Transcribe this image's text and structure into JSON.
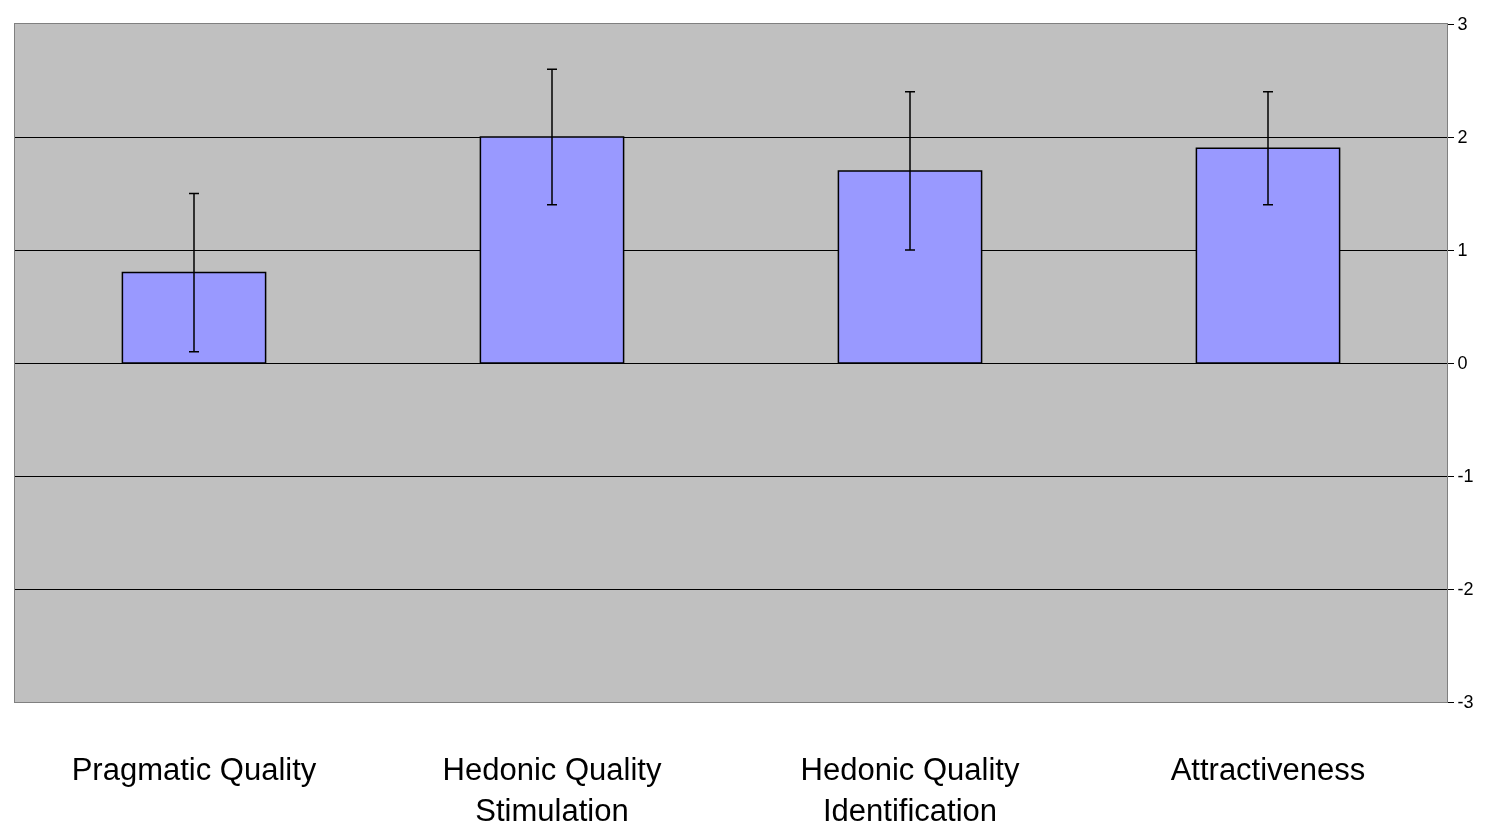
{
  "chart_data": {
    "type": "bar",
    "categories": [
      "Pragmatic Quality",
      "Hedonic Quality\nStimulation",
      "Hedonic Quality\nIdentification",
      "Attractiveness"
    ],
    "values": [
      0.8,
      2.0,
      1.7,
      1.9
    ],
    "errors": [
      0.7,
      0.6,
      0.7,
      0.5
    ],
    "color": "#9999ff",
    "ylim": [
      -3,
      3
    ],
    "yticks": [
      -3,
      -2,
      -1,
      0,
      1,
      2,
      3
    ],
    "grid": "y"
  }
}
